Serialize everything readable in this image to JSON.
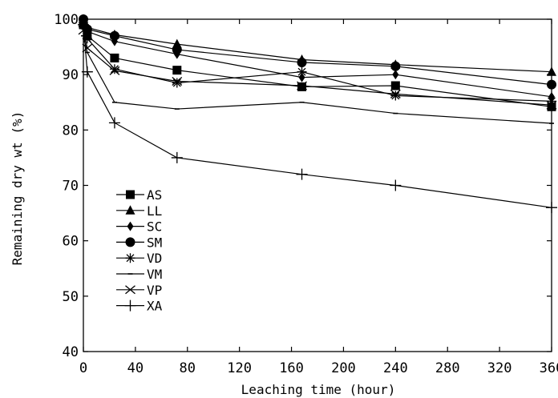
{
  "chart_data": {
    "type": "line",
    "xlabel": "Leaching time (hour)",
    "ylabel": "Remaining dry wt (%)",
    "xlim": [
      0,
      360
    ],
    "ylim": [
      40,
      100
    ],
    "xticks": [
      0,
      40,
      80,
      120,
      160,
      200,
      240,
      280,
      320,
      360
    ],
    "yticks": [
      40,
      50,
      60,
      70,
      80,
      90,
      100
    ],
    "grid": false,
    "legend": "bottom-left",
    "x": [
      0,
      3,
      24,
      72,
      168,
      240,
      360
    ],
    "series": [
      {
        "name": "AS",
        "marker": "square",
        "values": [
          99.0,
          97.0,
          93.0,
          90.8,
          87.8,
          88.0,
          84.2
        ]
      },
      {
        "name": "LL",
        "marker": "triangle",
        "values": [
          100.0,
          98.5,
          97.2,
          95.5,
          92.7,
          91.8,
          90.5
        ]
      },
      {
        "name": "SC",
        "marker": "diamond",
        "values": [
          100.0,
          97.8,
          96.0,
          93.7,
          89.5,
          90.0,
          86.0
        ]
      },
      {
        "name": "SM",
        "marker": "circle",
        "values": [
          100.0,
          98.2,
          97.0,
          94.5,
          92.2,
          91.5,
          88.2
        ]
      },
      {
        "name": "VD",
        "marker": "asterisk",
        "values": [
          99.0,
          96.5,
          91.0,
          88.5,
          90.5,
          86.2,
          85.2
        ]
      },
      {
        "name": "VM",
        "marker": "dash",
        "values": [
          97.0,
          94.0,
          85.0,
          83.8,
          85.0,
          83.0,
          81.2
        ]
      },
      {
        "name": "VP",
        "marker": "x",
        "values": [
          98.0,
          94.8,
          90.7,
          88.8,
          88.0,
          86.5,
          84.5
        ]
      },
      {
        "name": "XA",
        "marker": "plus",
        "values": [
          99.0,
          90.5,
          81.3,
          75.0,
          72.0,
          70.0,
          66.0
        ]
      }
    ]
  }
}
